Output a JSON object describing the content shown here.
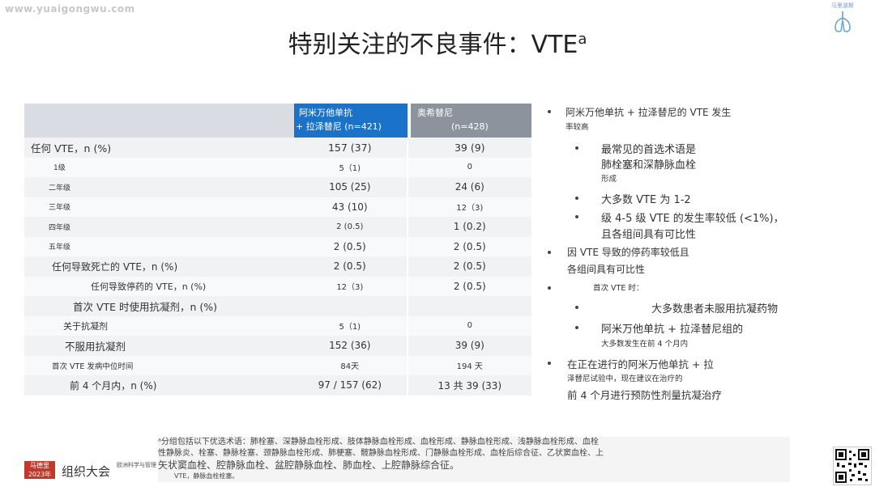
{
  "watermark": "www.yuaigongwu.com",
  "logo_label": "马里波斯",
  "title_main": "特别关注的不良事件：VTE",
  "title_sup": "a",
  "table": {
    "col1_line1": "阿米万他单抗",
    "col1_line2": "+ 拉泽替尼 (n=421)",
    "col2_line1": "奥希替尼",
    "col2_line2": "(n=428)",
    "rows": [
      {
        "label": "任何 VTE，n (%)",
        "v1": "157 (37)",
        "v2": "39 (9)"
      },
      {
        "label": "1级",
        "v1": "5（1)",
        "v2": "0"
      },
      {
        "label": "二年级",
        "v1": "105 (25)",
        "v2": "24 (6)"
      },
      {
        "label": "三年级",
        "v1": "43 (10)",
        "v2": "12（3)"
      },
      {
        "label": "四年级",
        "v1": "2 (0.5)",
        "v2": "1 (0.2)"
      },
      {
        "label": "五年级",
        "v1": "2 (0.5)",
        "v2": "2 (0.5)"
      },
      {
        "label": "任何导致死亡的 VTE，n (%)",
        "v1": "2 (0.5)",
        "v2": "2 (0.5)"
      },
      {
        "label": "任何导致停药的 VTE，n (%)",
        "v1": "12（3)",
        "v2": "2 (0.5)"
      },
      {
        "label": "首次 VTE 时使用抗凝剂，n (%)",
        "v1": "",
        "v2": ""
      },
      {
        "label": "关于抗凝剂",
        "v1": "5（1)",
        "v2": "0"
      },
      {
        "label": "不服用抗凝剂",
        "v1": "152 (36)",
        "v2": "39 (9)"
      },
      {
        "label": "首次 VTE 发病中位时间",
        "v1": "84天",
        "v2": "194 天"
      },
      {
        "label": "前 4 个月内，n (%)",
        "v1": "97 / 157 (62)",
        "v2": "13 共 39 (33)"
      }
    ]
  },
  "bullets": {
    "b1_l1": "阿米万他单抗 + 拉泽替尼的 VTE 发生",
    "b1_l2": "率较高",
    "b1a_l1": "最常见的首选术语是",
    "b1a_l2": "肺栓塞和深静脉血栓",
    "b1a_l3": "形成",
    "b1b": "大多数 VTE 为 1-2",
    "b1c_l1": "级 4-5 级 VTE 的发生率较低 (<1%)，",
    "b1c_l2": "且各组间具有可比性",
    "b2_l1": "因 VTE 导致的停药率较低且",
    "b2_l2": "各组间具有可比性",
    "b3": "首次 VTE 时：",
    "b3a": "大多数患者未服用抗凝药物",
    "b3b_l1": "阿米万他单抗 + 拉泽替尼组的",
    "b3b_l2": "大多数发生在前 4 个月内",
    "b4_l1": "在正在进行的阿米万他单抗 + 拉",
    "b4_l2": "泽替尼试验中，现在建议在治疗的",
    "b4_l3": "前 4 个月进行预防性剂量抗凝治疗"
  },
  "footnote": {
    "line1": "ᵃ分组包括以下优选术语：肺栓塞、深静脉血栓形成、肢体静脉血栓形成、血栓形成、静脉血栓形成、浅静脉血栓形成、血栓",
    "line2": "性静脉炎、栓塞、静脉栓塞、颈静脉血栓形成、肺梗塞、髋静脉血栓形成、门静脉血栓形成、血栓后综合征、乙状窦血栓、上",
    "line3": "矢状窦血栓、腔静脉血栓、盆腔静脉血栓、肺血栓、上腔静脉综合征。",
    "line4": "VTE，静脉血栓栓塞。"
  },
  "brand": {
    "box_l1": "马德里",
    "box_l2": "2023年",
    "name": "组织大会",
    "sub": "欧洲科学与管理"
  },
  "colors": {
    "header_blue": "#1a73c8",
    "header_gray": "#8c939c",
    "brand_red": "#c0392b"
  }
}
